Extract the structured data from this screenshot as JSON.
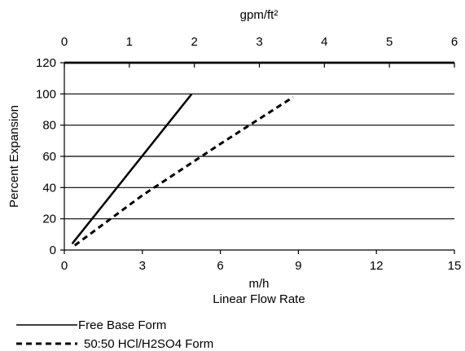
{
  "chart_data": {
    "type": "line",
    "xlabel_top": "gpm/ft²",
    "ylabel": "Percent  Expansion",
    "xlabel_bottom_unit": "m/h",
    "xlabel_bottom": "Linear Flow Rate",
    "x_bottom_ticks": [
      "0",
      "3",
      "6",
      "9",
      "12",
      "15"
    ],
    "x_top_ticks": [
      "0",
      "1",
      "2",
      "3",
      "4",
      "5",
      "6"
    ],
    "y_ticks": [
      "0",
      "20",
      "40",
      "60",
      "80",
      "100",
      "120"
    ],
    "xlim": [
      0,
      15
    ],
    "ylim": [
      0,
      120
    ],
    "x_top_lim": [
      0,
      6
    ],
    "grid": "horizontal",
    "legend_position": "bottom-left",
    "series": [
      {
        "name": "Free Base Form",
        "style": "solid",
        "x": [
          0.3,
          4.9
        ],
        "y": [
          4,
          100
        ]
      },
      {
        "name": "50:50 HCl/H2SO4 Form",
        "style": "dashed",
        "x": [
          0.4,
          3.0,
          6.0,
          8.8
        ],
        "y": [
          3,
          35,
          68,
          98
        ]
      }
    ]
  }
}
